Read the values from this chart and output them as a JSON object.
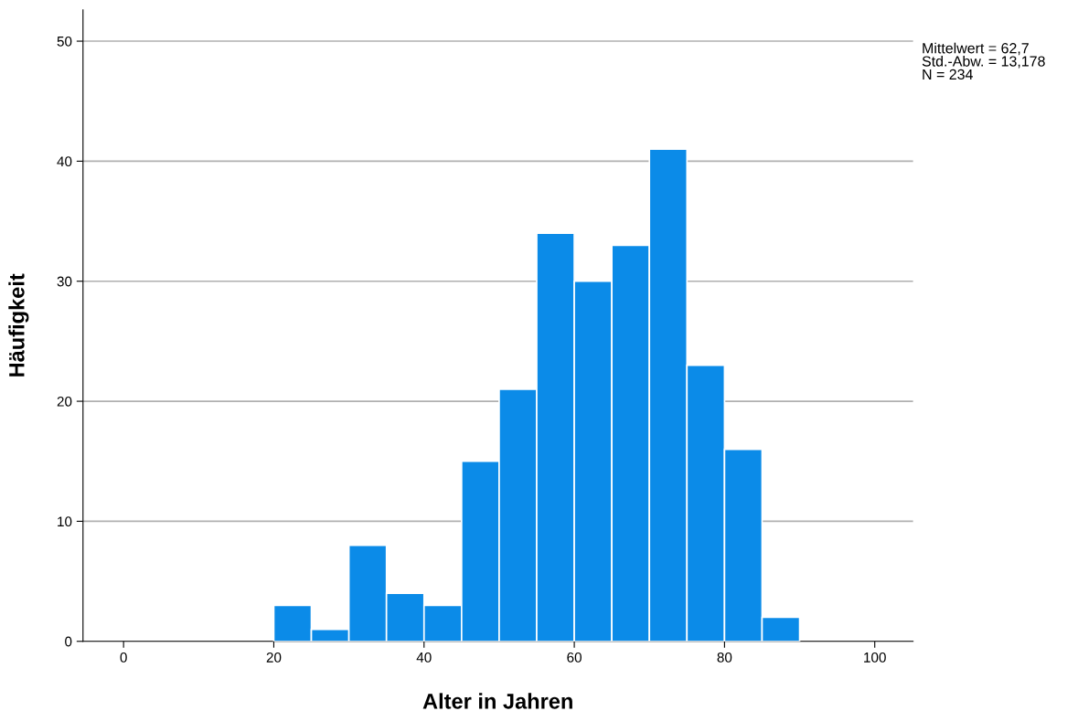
{
  "chart_data": {
    "type": "histogram",
    "xlabel": "Alter in Jahren",
    "ylabel": "Häufigkeit",
    "bins": [
      20,
      25,
      30,
      35,
      40,
      45,
      50,
      55,
      60,
      65,
      70,
      75,
      80,
      85,
      90
    ],
    "values": [
      3,
      1,
      8,
      4,
      3,
      15,
      21,
      34,
      30,
      33,
      41,
      23,
      16,
      2
    ],
    "color": "#0b8be8",
    "xlim": [
      -5.4,
      105.1
    ],
    "xticks": [
      0,
      20,
      40,
      60,
      80,
      100
    ],
    "ylim": [
      0,
      52.6
    ],
    "yticks": [
      0,
      10,
      20,
      30,
      40,
      50
    ],
    "grid": "y",
    "annotations": [
      "Mittelwert = 62,7\nStd.-Abw. = 13,178\nN = 234"
    ]
  }
}
